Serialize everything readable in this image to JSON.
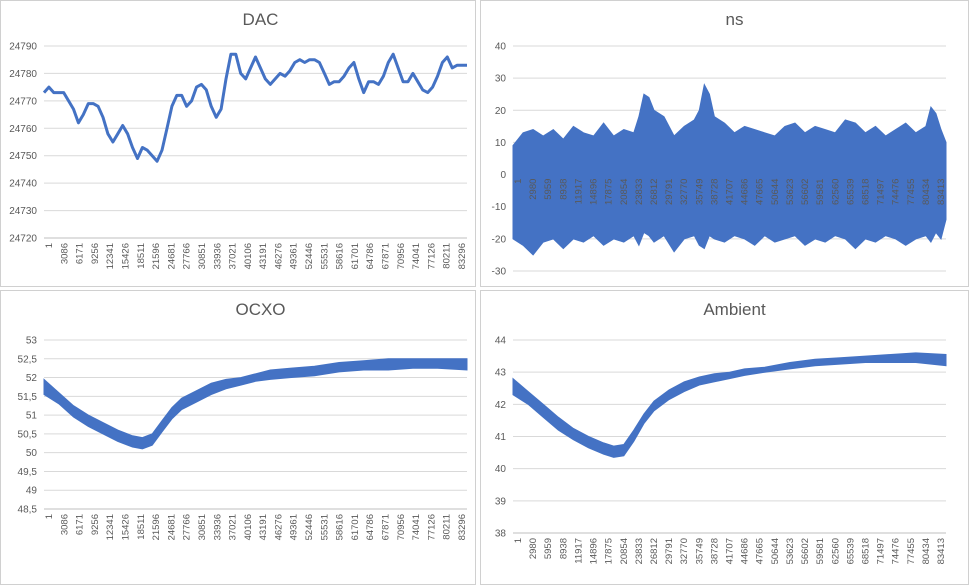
{
  "chart_data": [
    {
      "type": "line",
      "title": "DAC",
      "xlabel": "",
      "ylabel": "",
      "ylim": [
        24720,
        24790
      ],
      "ystep": 10,
      "yticks": [
        "24720",
        "24730",
        "24740",
        "24750",
        "24760",
        "24770",
        "24780",
        "24790"
      ],
      "categories": [
        "1",
        "3086",
        "6171",
        "9256",
        "12341",
        "15426",
        "18511",
        "21596",
        "24681",
        "27766",
        "30851",
        "33936",
        "37021",
        "40106",
        "43191",
        "46276",
        "49361",
        "52446",
        "55531",
        "58616",
        "61701",
        "64786",
        "67871",
        "70956",
        "74041",
        "77126",
        "80211",
        "83296"
      ],
      "style": "line",
      "color": "#4472c4",
      "series": [
        {
          "name": "DAC",
          "x": [
            0,
            1000,
            2000,
            3000,
            4000,
            5000,
            6000,
            7000,
            8000,
            9000,
            10000,
            11000,
            12000,
            13000,
            14000,
            15000,
            16000,
            17000,
            18000,
            19000,
            20000,
            21000,
            22000,
            23000,
            24000,
            25000,
            26000,
            27000,
            28000,
            29000,
            30000,
            31000,
            32000,
            33000,
            34000,
            35000,
            36000,
            37000,
            38000,
            39000,
            40000,
            41000,
            42000,
            43000,
            44000,
            45000,
            46000,
            47000,
            48000,
            49000,
            50000,
            51000,
            52000,
            53000,
            54000,
            55000,
            56000,
            57000,
            58000,
            59000,
            60000,
            61000,
            62000,
            63000,
            64000,
            65000,
            66000,
            67000,
            68000,
            69000,
            70000,
            71000,
            72000,
            73000,
            74000,
            75000,
            76000,
            77000,
            78000,
            79000,
            80000,
            81000,
            82000,
            83000,
            84000,
            85000,
            86000
          ],
          "values": [
            24773,
            24775,
            24773,
            24773,
            24773,
            24770,
            24767,
            24762,
            24765,
            24769,
            24769,
            24768,
            24764,
            24758,
            24755,
            24758,
            24761,
            24758,
            24753,
            24749,
            24753,
            24752,
            24750,
            24748,
            24752,
            24760,
            24768,
            24772,
            24772,
            24768,
            24770,
            24775,
            24776,
            24774,
            24768,
            24764,
            24767,
            24778,
            24787,
            24787,
            24780,
            24778,
            24782,
            24786,
            24782,
            24778,
            24776,
            24778,
            24780,
            24779,
            24781,
            24784,
            24785,
            24784,
            24785,
            24785,
            24784,
            24780,
            24776,
            24777,
            24777,
            24779,
            24782,
            24784,
            24778,
            24773,
            24777,
            24777,
            24776,
            24779,
            24784,
            24787,
            24782,
            24777,
            24777,
            24780,
            24777,
            24774,
            24773,
            24775,
            24779,
            24784,
            24786,
            24782,
            24783,
            24783,
            24783
          ]
        }
      ]
    },
    {
      "type": "line",
      "title": "ns",
      "xlabel": "",
      "ylabel": "",
      "ylim": [
        -30,
        40
      ],
      "ystep": 10,
      "yticks": [
        "-30",
        "-20",
        "-10",
        "0",
        "10",
        "20",
        "30",
        "40"
      ],
      "categories": [
        "1",
        "2980",
        "5959",
        "8938",
        "11917",
        "14896",
        "17875",
        "20854",
        "23833",
        "26812",
        "29791",
        "32770",
        "35749",
        "38728",
        "41707",
        "44686",
        "47665",
        "50644",
        "53623",
        "56602",
        "59581",
        "62560",
        "65539",
        "68518",
        "71497",
        "74476",
        "77455",
        "80434",
        "83413"
      ],
      "style": "band",
      "color": "#4472c4",
      "series": [
        {
          "name": "ns",
          "x": [
            0,
            2000,
            4000,
            6000,
            8000,
            10000,
            12000,
            14000,
            16000,
            18000,
            20000,
            22000,
            24000,
            25000,
            26000,
            27000,
            28000,
            30000,
            32000,
            34000,
            36000,
            37000,
            38000,
            39000,
            40000,
            42000,
            44000,
            46000,
            48000,
            50000,
            52000,
            54000,
            56000,
            58000,
            60000,
            62000,
            64000,
            66000,
            68000,
            70000,
            72000,
            74000,
            76000,
            78000,
            80000,
            82000,
            83000,
            84000,
            85000,
            86000
          ],
          "max": [
            9,
            13,
            14,
            12,
            14,
            11,
            15,
            13,
            12,
            16,
            12,
            14,
            13,
            18,
            25,
            24,
            20,
            18,
            12,
            15,
            17,
            20,
            28,
            25,
            18,
            16,
            13,
            15,
            14,
            13,
            12,
            15,
            16,
            13,
            15,
            14,
            13,
            17,
            16,
            13,
            15,
            12,
            14,
            16,
            13,
            15,
            21,
            19,
            14,
            10
          ],
          "min": [
            -20,
            -22,
            -25,
            -21,
            -20,
            -23,
            -20,
            -21,
            -19,
            -22,
            -20,
            -21,
            -19,
            -22,
            -18,
            -19,
            -21,
            -19,
            -24,
            -20,
            -19,
            -22,
            -23,
            -19,
            -20,
            -21,
            -19,
            -20,
            -22,
            -19,
            -21,
            -20,
            -19,
            -22,
            -20,
            -21,
            -19,
            -20,
            -23,
            -20,
            -21,
            -19,
            -20,
            -22,
            -20,
            -19,
            -21,
            -18,
            -20,
            -14
          ]
        }
      ]
    },
    {
      "type": "line",
      "title": "OCXO",
      "xlabel": "",
      "ylabel": "",
      "ylim": [
        48.5,
        53
      ],
      "ystep": 0.5,
      "yticks": [
        "48,5",
        "49",
        "49,5",
        "50",
        "50,5",
        "51",
        "51,5",
        "52",
        "52,5",
        "53"
      ],
      "categories": [
        "1",
        "3086",
        "6171",
        "9256",
        "12341",
        "15426",
        "18511",
        "21596",
        "24681",
        "27766",
        "30851",
        "33936",
        "37021",
        "40106",
        "43191",
        "46276",
        "49361",
        "52446",
        "55531",
        "58616",
        "61701",
        "64786",
        "67871",
        "70956",
        "74041",
        "77126",
        "80211",
        "83296"
      ],
      "style": "band",
      "color": "#4472c4",
      "series": [
        {
          "name": "OCXO",
          "x": [
            0,
            3000,
            6000,
            9000,
            12000,
            15000,
            18000,
            20000,
            22000,
            24000,
            26000,
            28000,
            31000,
            34000,
            37000,
            40000,
            43000,
            46000,
            50000,
            55000,
            60000,
            65000,
            70000,
            75000,
            80000,
            86000
          ],
          "max": [
            51.95,
            51.6,
            51.25,
            51.0,
            50.8,
            50.6,
            50.45,
            50.4,
            50.5,
            50.85,
            51.2,
            51.45,
            51.65,
            51.85,
            51.95,
            52.0,
            52.1,
            52.2,
            52.25,
            52.3,
            52.4,
            52.45,
            52.5,
            52.5,
            52.5,
            52.5
          ],
          "min": [
            51.55,
            51.3,
            50.95,
            50.7,
            50.5,
            50.3,
            50.15,
            50.1,
            50.2,
            50.55,
            50.9,
            51.15,
            51.35,
            51.55,
            51.7,
            51.8,
            51.9,
            51.95,
            52.0,
            52.05,
            52.15,
            52.2,
            52.2,
            52.25,
            52.25,
            52.2
          ]
        }
      ]
    },
    {
      "type": "line",
      "title": "Ambient",
      "xlabel": "",
      "ylabel": "",
      "ylim": [
        38,
        44
      ],
      "ystep": 1,
      "yticks": [
        "38",
        "39",
        "40",
        "41",
        "42",
        "43",
        "44"
      ],
      "categories": [
        "1",
        "2980",
        "5959",
        "8938",
        "11917",
        "14896",
        "17875",
        "20854",
        "23833",
        "26812",
        "29791",
        "32770",
        "35749",
        "38728",
        "41707",
        "44686",
        "47665",
        "50644",
        "53623",
        "56602",
        "59581",
        "62560",
        "65539",
        "68518",
        "71497",
        "74476",
        "77455",
        "80434",
        "83413"
      ],
      "style": "band",
      "color": "#4472c4",
      "series": [
        {
          "name": "Ambient",
          "x": [
            0,
            3000,
            6000,
            9000,
            12000,
            15000,
            18000,
            20000,
            22000,
            24000,
            26000,
            28000,
            31000,
            34000,
            37000,
            40000,
            43000,
            46000,
            50000,
            55000,
            60000,
            65000,
            70000,
            75000,
            80000,
            86000
          ],
          "max": [
            42.8,
            42.4,
            42.0,
            41.6,
            41.25,
            41.0,
            40.8,
            40.7,
            40.75,
            41.2,
            41.7,
            42.1,
            42.45,
            42.7,
            42.85,
            42.95,
            43.0,
            43.1,
            43.15,
            43.3,
            43.4,
            43.45,
            43.5,
            43.55,
            43.6,
            43.55
          ],
          "min": [
            42.3,
            42.0,
            41.6,
            41.2,
            40.9,
            40.65,
            40.45,
            40.35,
            40.4,
            40.85,
            41.4,
            41.8,
            42.15,
            42.4,
            42.6,
            42.7,
            42.8,
            42.9,
            43.0,
            43.1,
            43.2,
            43.25,
            43.3,
            43.3,
            43.3,
            43.2
          ]
        }
      ]
    }
  ]
}
